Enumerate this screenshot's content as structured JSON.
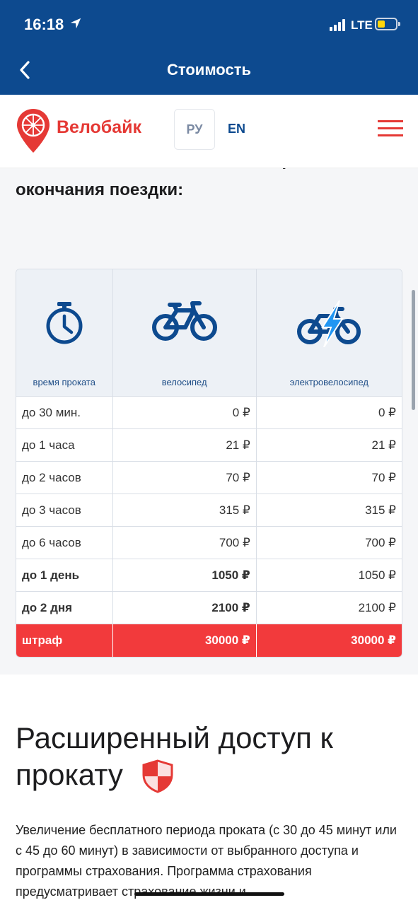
{
  "status_bar": {
    "time": "16:18",
    "network": "LTE"
  },
  "nav": {
    "title": "Стоимость"
  },
  "site_header": {
    "brand": "Велобайк",
    "lang_ru": "РУ",
    "lang_en": "EN"
  },
  "intro_text": "списана с вашей банковской карты после окончания поездки:",
  "pricing_table": {
    "headers": [
      "время проката",
      "велосипед",
      "электровелосипед"
    ],
    "rows": [
      {
        "time": "до 30 мин.",
        "bike": "0 ₽",
        "ebike": "0 ₽"
      },
      {
        "time": "до 1 часа",
        "bike": "21 ₽",
        "ebike": "21 ₽"
      },
      {
        "time": "до 2 часов",
        "bike": "70 ₽",
        "ebike": "70 ₽"
      },
      {
        "time": "до 3 часов",
        "bike": "315 ₽",
        "ebike": "315 ₽"
      },
      {
        "time": "до 6 часов",
        "bike": "700 ₽",
        "ebike": "700 ₽"
      },
      {
        "time": "до 1 день",
        "bike": "1050 ₽",
        "ebike": "1050 ₽"
      },
      {
        "time": "до 2 дня",
        "bike": "2100 ₽",
        "ebike": "2100 ₽"
      },
      {
        "time": "штраф",
        "bike": "30000 ₽",
        "ebike": "30000 ₽"
      }
    ]
  },
  "extended_access": {
    "title": "Расширенный доступ к прокату",
    "text": "Увеличение бесплатного периода проката (с 30 до 45 минут или с 45 до 60 минут) в зависимости от выбранного доступа и программы страхования. Программа страхования предусматривает страхование жизни и"
  },
  "colors": {
    "brand_blue": "#0d4a8f",
    "brand_red": "#e53935",
    "penalty_red": "#f23a3c"
  },
  "icons": [
    "location-arrow-icon",
    "signal-icon",
    "battery-icon",
    "back-chevron-icon",
    "bike-logo-pin-icon",
    "menu-icon",
    "stopwatch-icon",
    "bicycle-icon",
    "electric-bicycle-icon",
    "shield-icon"
  ]
}
